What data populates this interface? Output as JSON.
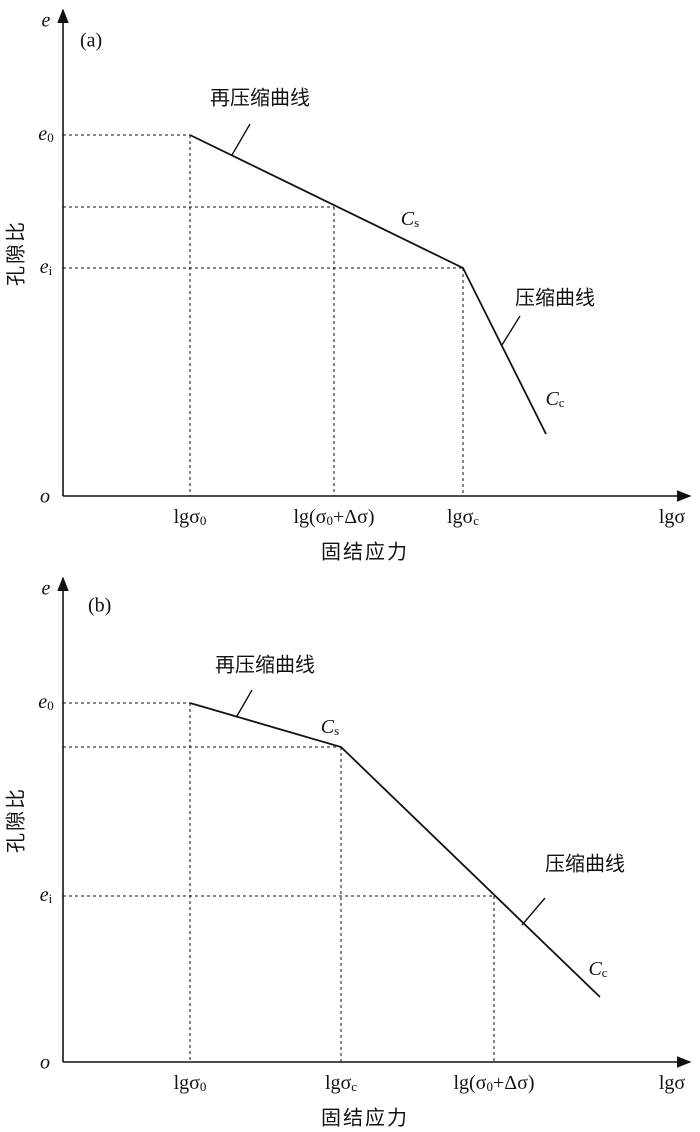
{
  "panels": [
    {
      "label": "(a)",
      "y_axis": "e",
      "origin": "o",
      "x_axis": [
        "lgσ"
      ],
      "y_title": "孔隙比",
      "x_title": "固结应力",
      "y_ticks": [
        [
          "e",
          "0"
        ],
        [
          "e",
          "i"
        ]
      ],
      "x_ticks": [
        [
          "lgσ",
          "0"
        ],
        [
          "lg(σ",
          "0",
          "+Δσ)"
        ],
        [
          "lgσ",
          "c"
        ]
      ],
      "curves": [
        "再压缩曲线",
        "压缩曲线"
      ],
      "indices": [
        [
          "C",
          "s"
        ],
        [
          "C",
          "c"
        ]
      ]
    },
    {
      "label": "(b)",
      "y_axis": "e",
      "origin": "o",
      "x_axis": [
        "lgσ"
      ],
      "y_title": "孔隙比",
      "x_title": "固结应力",
      "y_ticks": [
        [
          "e",
          "0"
        ],
        [
          "e",
          "i"
        ]
      ],
      "x_ticks": [
        [
          "lgσ",
          "0"
        ],
        [
          "lgσ",
          "c"
        ],
        [
          "lg(σ",
          "0",
          "+Δσ)"
        ]
      ],
      "curves": [
        "再压缩曲线",
        "压缩曲线"
      ],
      "indices": [
        [
          "C",
          "s"
        ],
        [
          "C",
          "c"
        ]
      ]
    }
  ]
}
